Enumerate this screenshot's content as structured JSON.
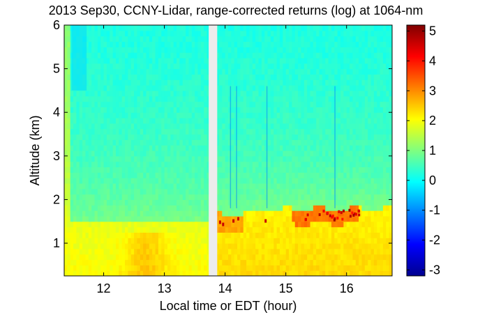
{
  "chart_data": {
    "type": "heatmap",
    "title": "2013 Sep30, CCNY-Lidar, range-corrected returns (log) at 1064-nm",
    "xlabel": "Local time or EDT (hour)",
    "ylabel": "Altitude (km)",
    "xlim": [
      11.35,
      16.75
    ],
    "ylim": [
      0.25,
      6.0
    ],
    "xticks": [
      12,
      13,
      14,
      15,
      16
    ],
    "yticks": [
      1,
      2,
      3,
      4,
      5,
      6
    ],
    "data_gap": {
      "x_start": 13.73,
      "x_end": 13.87
    },
    "colorbar": {
      "colormap": "jet",
      "clim": [
        -3.2,
        5.2
      ],
      "ticks": [
        -3,
        -2,
        -1,
        0,
        1,
        2,
        3,
        4,
        5
      ]
    },
    "layers": [
      {
        "name": "free troposphere",
        "altitude_km": [
          1.8,
          6.0
        ],
        "log_value": 0.5
      },
      {
        "name": "boundary layer morning",
        "x_range": [
          11.35,
          13.73
        ],
        "top_km": 1.5,
        "log_value": 2.1
      },
      {
        "name": "boundary layer afternoon",
        "x_range": [
          13.87,
          16.75
        ],
        "top_km": 1.8,
        "log_value": 2.4
      },
      {
        "name": "aerosol/cloud peaks",
        "x_range": [
          15.2,
          16.2
        ],
        "altitude_km": [
          1.55,
          1.8
        ],
        "log_value": 5.0
      }
    ]
  }
}
